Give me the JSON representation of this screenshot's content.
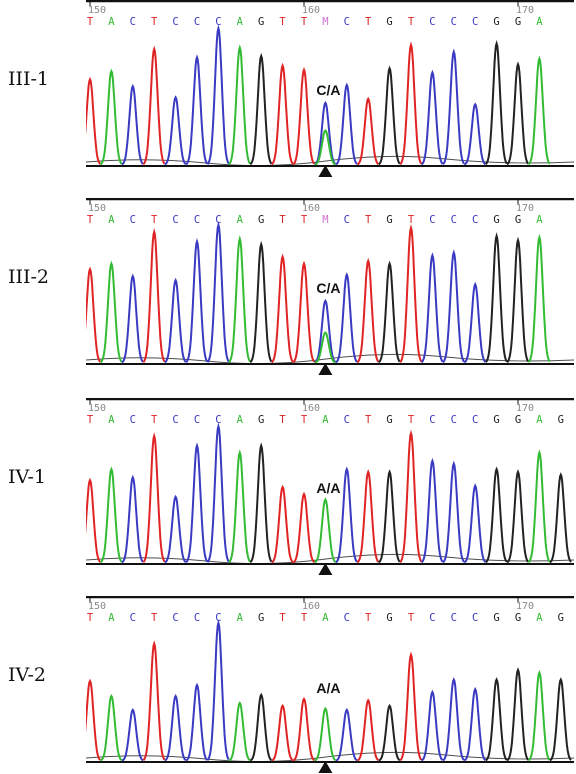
{
  "colors": {
    "A": "#33bb33",
    "C": "#3a3ac2",
    "G": "#222222",
    "T": "#e02424",
    "M": "#d070d0",
    "axis": "#111111",
    "tick_text": "#888888",
    "genotype": "#111111"
  },
  "ruler_ticks": [
    {
      "position": 150,
      "label": "150"
    },
    {
      "position": 160,
      "label": "160"
    },
    {
      "position": 170,
      "label": "170"
    }
  ],
  "panels": [
    {
      "label": "III-1",
      "genotype": "C/A",
      "bases": [
        "T",
        "A",
        "C",
        "T",
        "C",
        "C",
        "C",
        "A",
        "G",
        "T",
        "T",
        "M",
        "C",
        "T",
        "G",
        "T",
        "C",
        "C",
        "C",
        "G",
        "G",
        "A"
      ],
      "peaks": [
        {
          "T": 0.62
        },
        {
          "A": 0.68
        },
        {
          "C": 0.57
        },
        {
          "T": 0.84
        },
        {
          "C": 0.49
        },
        {
          "C": 0.78
        },
        {
          "C": 0.99
        },
        {
          "A": 0.85
        },
        {
          "G": 0.79
        },
        {
          "T": 0.72
        },
        {
          "T": 0.69
        },
        {
          "C": 0.45,
          "A": 0.25
        },
        {
          "C": 0.58
        },
        {
          "T": 0.48
        },
        {
          "G": 0.7
        },
        {
          "T": 0.87
        },
        {
          "C": 0.67
        },
        {
          "C": 0.82
        },
        {
          "C": 0.44
        },
        {
          "G": 0.88
        },
        {
          "G": 0.73
        },
        {
          "A": 0.77
        }
      ],
      "marker_index": 11
    },
    {
      "label": "III-2",
      "genotype": "C/A",
      "bases": [
        "T",
        "A",
        "C",
        "T",
        "C",
        "C",
        "C",
        "A",
        "G",
        "T",
        "T",
        "M",
        "C",
        "T",
        "G",
        "T",
        "C",
        "C",
        "C",
        "G",
        "G",
        "A"
      ],
      "peaks": [
        {
          "T": 0.68
        },
        {
          "A": 0.72
        },
        {
          "C": 0.63
        },
        {
          "T": 0.95
        },
        {
          "C": 0.6
        },
        {
          "C": 0.88
        },
        {
          "C": 1.0
        },
        {
          "A": 0.9
        },
        {
          "G": 0.86
        },
        {
          "T": 0.77
        },
        {
          "T": 0.72
        },
        {
          "C": 0.45,
          "A": 0.22
        },
        {
          "C": 0.64
        },
        {
          "T": 0.74
        },
        {
          "G": 0.72
        },
        {
          "T": 0.98
        },
        {
          "C": 0.78
        },
        {
          "C": 0.8
        },
        {
          "C": 0.57
        },
        {
          "G": 0.92
        },
        {
          "G": 0.89
        },
        {
          "A": 0.91
        }
      ],
      "marker_index": 11
    },
    {
      "label": "IV-1",
      "genotype": "A/A",
      "bases": [
        "T",
        "A",
        "C",
        "T",
        "C",
        "C",
        "C",
        "A",
        "G",
        "T",
        "T",
        "A",
        "C",
        "T",
        "G",
        "T",
        "C",
        "C",
        "C",
        "G",
        "G",
        "A",
        "G"
      ],
      "peaks": [
        {
          "T": 0.6
        },
        {
          "A": 0.68
        },
        {
          "C": 0.62
        },
        {
          "T": 0.92
        },
        {
          "C": 0.48
        },
        {
          "C": 0.85
        },
        {
          "C": 0.99
        },
        {
          "A": 0.8
        },
        {
          "G": 0.85
        },
        {
          "T": 0.55
        },
        {
          "T": 0.5
        },
        {
          "A": 0.46
        },
        {
          "C": 0.68
        },
        {
          "T": 0.66
        },
        {
          "G": 0.66
        },
        {
          "T": 0.94
        },
        {
          "C": 0.74
        },
        {
          "C": 0.72
        },
        {
          "C": 0.56
        },
        {
          "G": 0.68
        },
        {
          "G": 0.66
        },
        {
          "A": 0.8
        },
        {
          "G": 0.64
        }
      ],
      "marker_index": 11
    },
    {
      "label": "IV-2",
      "genotype": "A/A",
      "bases": [
        "T",
        "A",
        "C",
        "T",
        "C",
        "C",
        "C",
        "A",
        "G",
        "T",
        "T",
        "A",
        "C",
        "T",
        "G",
        "T",
        "C",
        "C",
        "C",
        "G",
        "G",
        "A",
        "G"
      ],
      "peaks": [
        {
          "T": 0.58
        },
        {
          "A": 0.47
        },
        {
          "C": 0.37
        },
        {
          "T": 0.85
        },
        {
          "C": 0.47
        },
        {
          "C": 0.55
        },
        {
          "C": 1.0
        },
        {
          "A": 0.42
        },
        {
          "G": 0.48
        },
        {
          "T": 0.4
        },
        {
          "T": 0.45
        },
        {
          "A": 0.38
        },
        {
          "C": 0.37
        },
        {
          "T": 0.44
        },
        {
          "G": 0.4
        },
        {
          "T": 0.77
        },
        {
          "C": 0.5
        },
        {
          "C": 0.59
        },
        {
          "C": 0.52
        },
        {
          "G": 0.59
        },
        {
          "G": 0.66
        },
        {
          "A": 0.64
        },
        {
          "G": 0.59
        }
      ],
      "marker_index": 11
    }
  ]
}
